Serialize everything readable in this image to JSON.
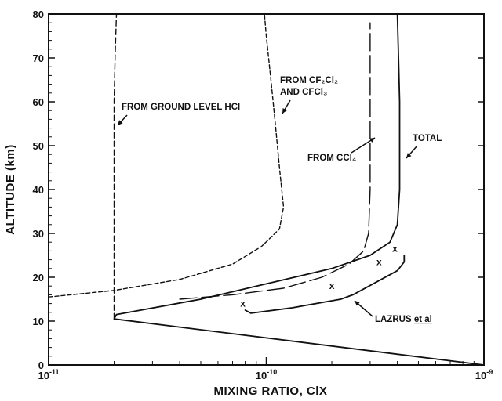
{
  "chart_data": {
    "type": "line",
    "xlabel": "MIXING RATIO, ClX",
    "ylabel": "ALTITUDE (km)",
    "x_scale": "log",
    "xlim": [
      1e-11,
      1e-09
    ],
    "ylim": [
      0,
      80
    ],
    "x_ticks": [
      {
        "value": 1e-11,
        "base": "10",
        "exp": "-11"
      },
      {
        "value": 1e-10,
        "base": "10",
        "exp": "-10"
      },
      {
        "value": 1e-09,
        "base": "10",
        "exp": "-9"
      }
    ],
    "y_ticks": [
      0,
      10,
      20,
      30,
      40,
      50,
      60,
      70,
      80
    ],
    "series": [
      {
        "name": "TOTAL",
        "style": "solid",
        "points": [
          [
            1e-09,
            0
          ],
          [
            2e-11,
            10.5
          ],
          [
            2.05e-11,
            11.5
          ],
          [
            5e-11,
            15
          ],
          [
            1e-10,
            18.5
          ],
          [
            2e-10,
            22
          ],
          [
            3e-10,
            25
          ],
          [
            3.7e-10,
            28
          ],
          [
            4e-10,
            32
          ],
          [
            4.1e-10,
            40
          ],
          [
            4.1e-10,
            50
          ],
          [
            4.1e-10,
            60
          ],
          [
            4.05e-10,
            70
          ],
          [
            4e-10,
            80
          ]
        ]
      },
      {
        "name": "FROM CCl4",
        "style": "longdash",
        "points": [
          [
            4e-11,
            15
          ],
          [
            7e-11,
            16
          ],
          [
            1.2e-10,
            17.5
          ],
          [
            1.8e-10,
            20
          ],
          [
            2.4e-10,
            23
          ],
          [
            2.8e-10,
            26
          ],
          [
            2.95e-10,
            30
          ],
          [
            3e-10,
            40
          ],
          [
            3e-10,
            50
          ],
          [
            3e-10,
            60
          ],
          [
            3e-10,
            70
          ],
          [
            3e-10,
            78
          ]
        ]
      },
      {
        "name": "FROM CF2Cl2 AND CFCl3",
        "style": "shortdash",
        "points": [
          [
            1e-11,
            15.5
          ],
          [
            2e-11,
            17
          ],
          [
            4e-11,
            19.5
          ],
          [
            7e-11,
            23
          ],
          [
            9.5e-11,
            27
          ],
          [
            1.15e-10,
            31
          ],
          [
            1.2e-10,
            36
          ],
          [
            1.15e-10,
            45
          ],
          [
            1.1e-10,
            55
          ],
          [
            1.05e-10,
            65
          ],
          [
            1e-10,
            75
          ],
          [
            9.8e-11,
            80
          ]
        ]
      },
      {
        "name": "FROM GROUND LEVEL HCl",
        "style": "dashed",
        "points": [
          [
            2e-11,
            10.5
          ],
          [
            2e-11,
            20
          ],
          [
            2e-11,
            30
          ],
          [
            2e-11,
            40
          ],
          [
            2e-11,
            50
          ],
          [
            2e-11,
            60
          ],
          [
            2.02e-11,
            70
          ],
          [
            2.05e-11,
            80
          ]
        ]
      },
      {
        "name": "LAZRUS et al",
        "style": "solid",
        "points": [
          [
            8e-11,
            12.5
          ],
          [
            8.5e-11,
            11.8
          ],
          [
            1.3e-10,
            13
          ],
          [
            2.2e-10,
            15
          ],
          [
            2.5e-10,
            16
          ],
          [
            4e-10,
            21.5
          ],
          [
            4.3e-10,
            23.5
          ],
          [
            4.3e-10,
            25
          ]
        ]
      }
    ],
    "markers": [
      {
        "symbol": "x",
        "x": 7.8e-11,
        "y": 14
      },
      {
        "symbol": "x",
        "x": 2e-10,
        "y": 18
      },
      {
        "symbol": "x",
        "x": 3.3e-10,
        "y": 23.5
      },
      {
        "symbol": "x",
        "x": 3.9e-10,
        "y": 26.5
      }
    ],
    "annotations": [
      {
        "key": "hcl",
        "text": "FROM GROUND LEVEL HCl"
      },
      {
        "key": "cfc",
        "line1": "FROM CF₂Cl₂",
        "line2": "AND CFCl₃"
      },
      {
        "key": "ccl4",
        "text": "FROM CCl₄"
      },
      {
        "key": "total",
        "text": "TOTAL"
      },
      {
        "key": "lazrus",
        "text": "LAZRUS ",
        "text_ul": "et al"
      }
    ]
  }
}
